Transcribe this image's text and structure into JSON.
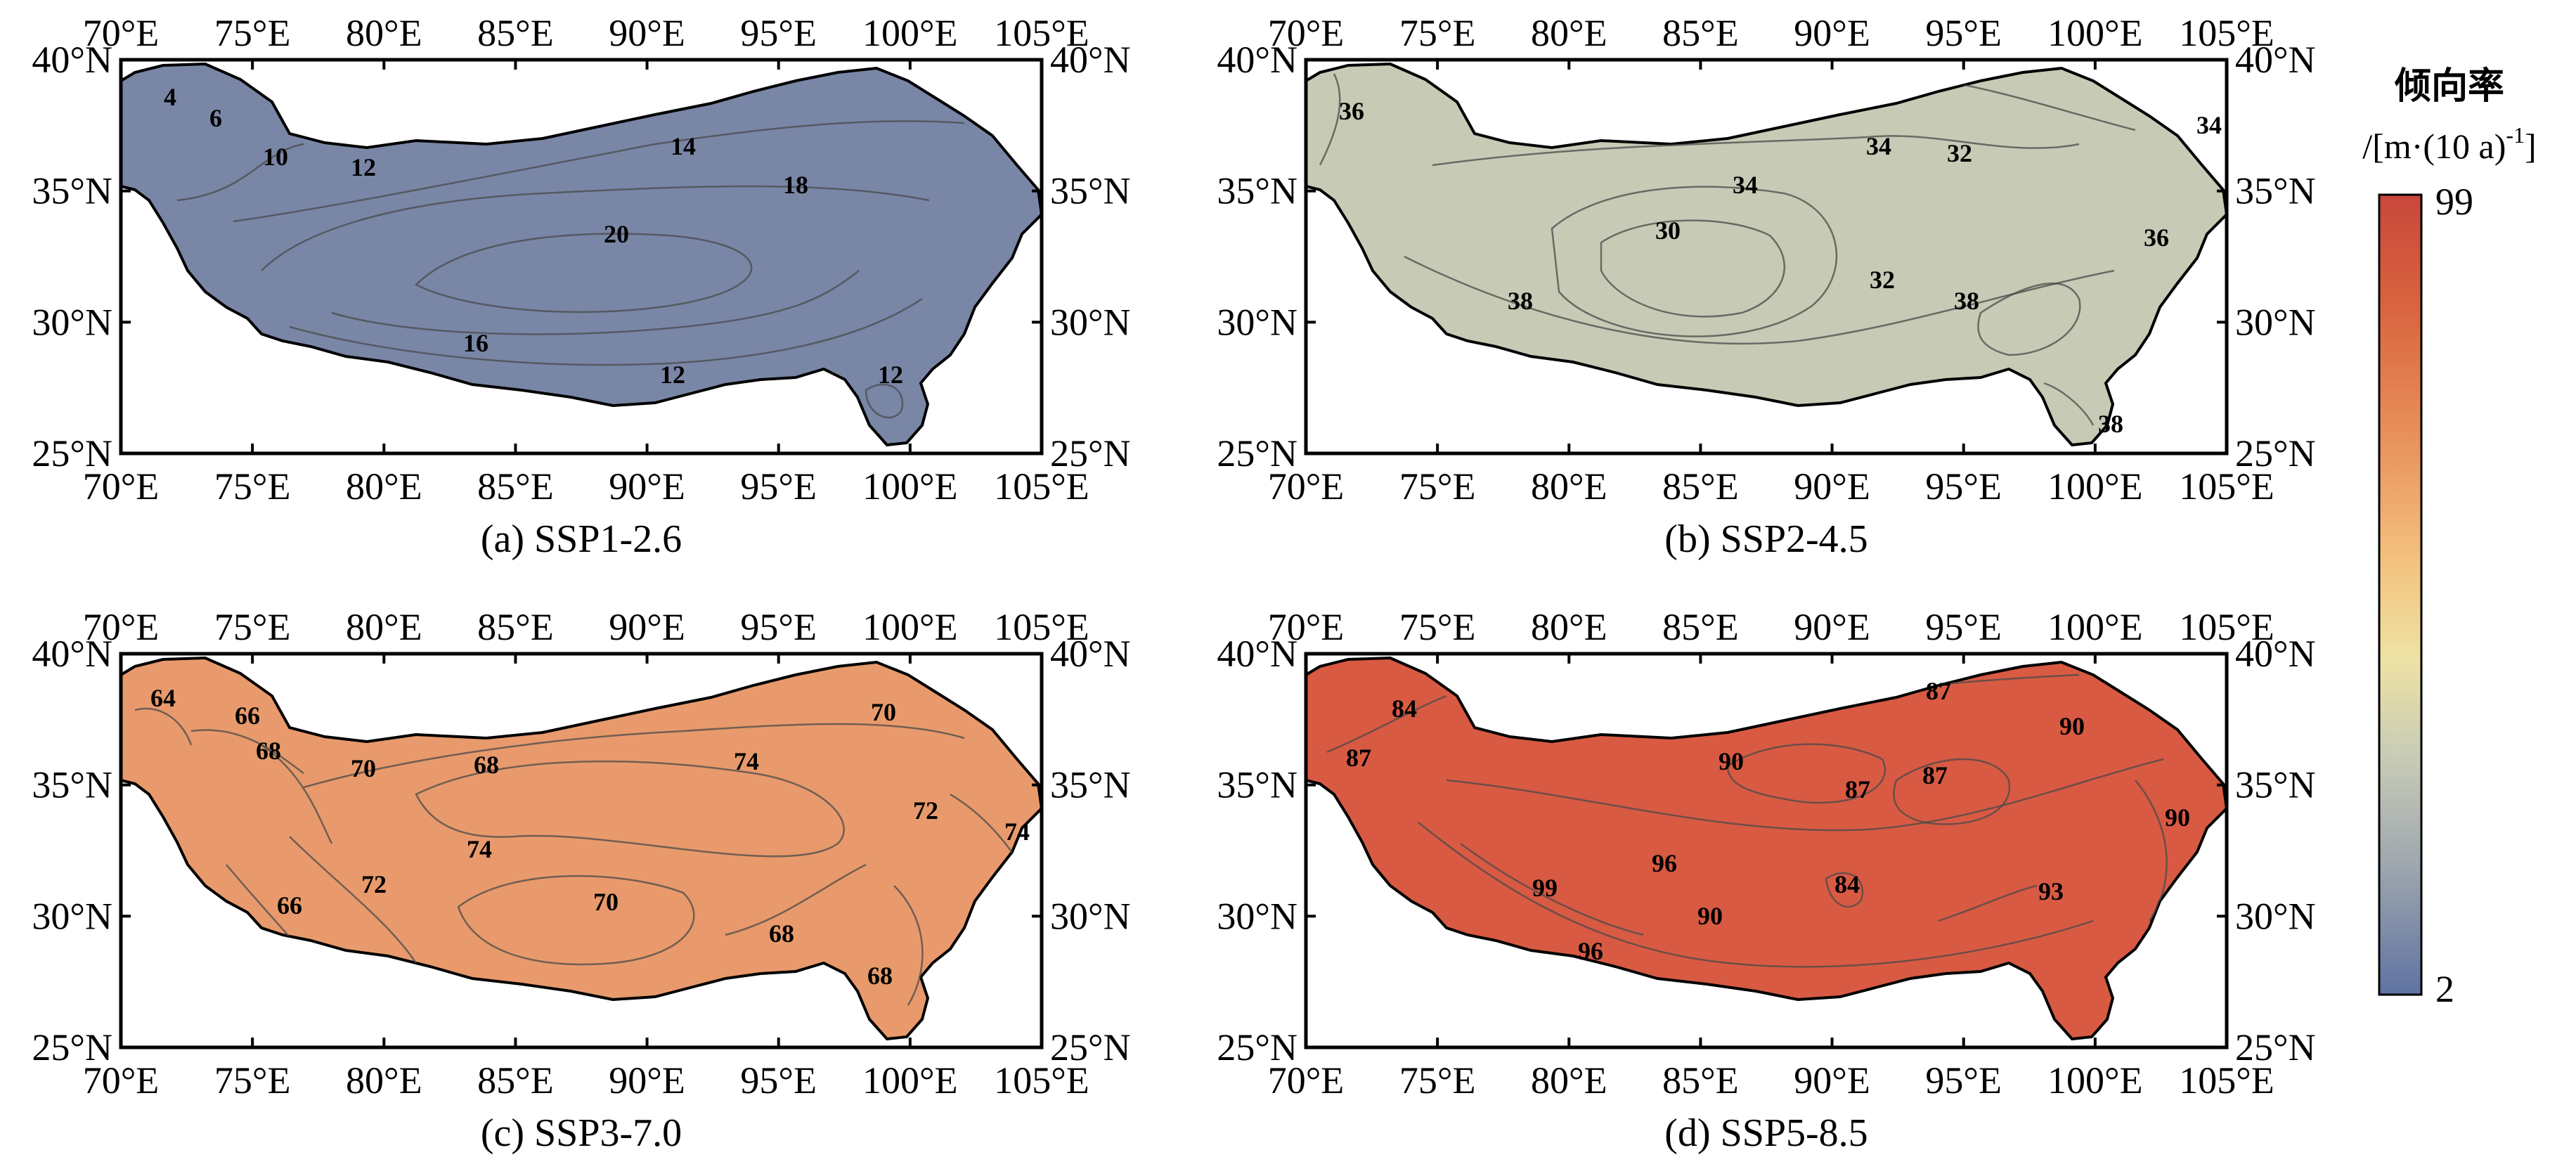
{
  "figure": {
    "panels": [
      {
        "id": "a",
        "caption": "(a) SSP1-2.6",
        "x_ticks": [
          "70°E",
          "75°E",
          "80°E",
          "85°E",
          "90°E",
          "95°E",
          "100°E",
          "105°E"
        ],
        "y_ticks": [
          "40°N",
          "35°N",
          "30°N",
          "25°N"
        ],
        "contour_labels": [
          "4",
          "6",
          "10",
          "12",
          "14",
          "18",
          "20",
          "16",
          "12",
          "12"
        ],
        "fill_color": "#7986A6"
      },
      {
        "id": "b",
        "caption": "(b) SSP2-4.5",
        "x_ticks": [
          "70°E",
          "75°E",
          "80°E",
          "85°E",
          "90°E",
          "95°E",
          "100°E",
          "105°E"
        ],
        "y_ticks": [
          "40°N",
          "35°N",
          "30°N",
          "25°N"
        ],
        "contour_labels": [
          "36",
          "34",
          "32",
          "34",
          "34",
          "30",
          "36",
          "32",
          "38",
          "38",
          "38"
        ],
        "fill_color": "#C7CAB5"
      },
      {
        "id": "c",
        "caption": "(c) SSP3-7.0",
        "x_ticks": [
          "70°E",
          "75°E",
          "80°E",
          "85°E",
          "90°E",
          "95°E",
          "100°E",
          "105°E"
        ],
        "y_ticks": [
          "40°N",
          "35°N",
          "30°N",
          "25°N"
        ],
        "contour_labels": [
          "64",
          "66",
          "68",
          "70",
          "68",
          "74",
          "70",
          "72",
          "74",
          "68",
          "74",
          "72",
          "66",
          "70",
          "68"
        ],
        "fill_color": "#E89A6C"
      },
      {
        "id": "d",
        "caption": "(d) SSP5-8.5",
        "x_ticks": [
          "70°E",
          "75°E",
          "80°E",
          "85°E",
          "90°E",
          "95°E",
          "100°E",
          "105°E"
        ],
        "y_ticks": [
          "40°N",
          "35°N",
          "30°N",
          "25°N"
        ],
        "contour_labels": [
          "84",
          "87",
          "87",
          "90",
          "90",
          "87",
          "87",
          "90",
          "96",
          "99",
          "84",
          "90",
          "93",
          "96"
        ],
        "fill_color": "#D85A43"
      }
    ],
    "colorbar": {
      "title": "倾向率",
      "unit_parts": [
        "/[m·(10 a)",
        "-1",
        "]"
      ],
      "max_label": "99",
      "min_label": "2",
      "colors_top_to_bottom": [
        "#C8473B",
        "#D9643F",
        "#E8905A",
        "#F4C27E",
        "#EEE2A4",
        "#C9CCB6",
        "#9EA6AE",
        "#5F72A2"
      ]
    }
  }
}
